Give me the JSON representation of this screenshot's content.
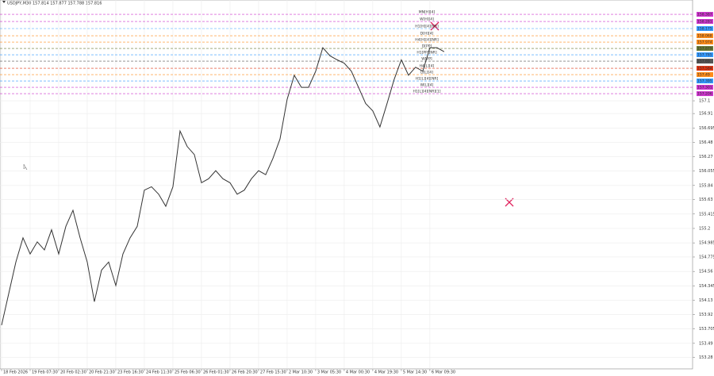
{
  "chart_data": {
    "type": "line",
    "title": "USDJPY,M30 157.814 157.877 157.788 157.816",
    "ylim": [
      153.11,
      158.6
    ],
    "yticks": [
      157.1,
      156.91,
      156.695,
      156.48,
      156.27,
      156.055,
      155.84,
      155.63,
      155.415,
      155.2,
      154.985,
      154.775,
      154.56,
      154.345,
      154.13,
      153.92,
      153.705,
      153.49,
      153.28
    ],
    "xlim": [
      0,
      96.8
    ],
    "xticks": [
      {
        "value": 0,
        "label": "18 Feb 2026"
      },
      {
        "value": 4,
        "label": "19 Feb 07:30"
      },
      {
        "value": 8,
        "label": "20 Feb 02:30"
      },
      {
        "value": 12,
        "label": "20 Feb 21:30"
      },
      {
        "value": 16,
        "label": "23 Feb 16:30"
      },
      {
        "value": 20,
        "label": "24 Feb 11:30"
      },
      {
        "value": 24,
        "label": "25 Feb 06:30"
      },
      {
        "value": 28,
        "label": "26 Feb 01:30"
      },
      {
        "value": 32,
        "label": "26 Feb 20:30"
      },
      {
        "value": 36,
        "label": "27 Feb 15:30"
      },
      {
        "value": 40,
        "label": "2 Mar 10:30"
      },
      {
        "value": 44,
        "label": "3 Mar 05:30"
      },
      {
        "value": 48,
        "label": "4 Mar 00:30"
      },
      {
        "value": 52,
        "label": "4 Mar 19:30"
      },
      {
        "value": 56,
        "label": "5 Mar 14:30"
      },
      {
        "value": 60,
        "label": "6 Mar 09:30"
      }
    ],
    "grid": true,
    "series": [
      {
        "name": "USDJPY,M30",
        "color": "#333333",
        "values": [
          153.76,
          154.23,
          154.7,
          155.06,
          154.82,
          155.0,
          154.88,
          155.18,
          154.82,
          155.23,
          155.47,
          155.06,
          154.7,
          154.11,
          154.58,
          154.7,
          154.35,
          154.82,
          155.06,
          155.23,
          155.77,
          155.82,
          155.71,
          155.53,
          155.82,
          156.65,
          156.42,
          156.3,
          155.88,
          155.94,
          156.06,
          155.94,
          155.88,
          155.71,
          155.77,
          155.94,
          156.06,
          156.0,
          156.24,
          156.53,
          157.12,
          157.48,
          157.3,
          157.3,
          157.54,
          157.89,
          157.77,
          157.71,
          157.66,
          157.54,
          157.3,
          157.06,
          156.95,
          156.71,
          157.06,
          157.42,
          157.71,
          157.48,
          157.6,
          157.54,
          157.89,
          157.89,
          157.83
        ]
      }
    ],
    "levels": [
      {
        "label": "MN[H][4]",
        "value": 158.387,
        "color": "#cc33cc"
      },
      {
        "label": "W[H][4]",
        "value": 158.281,
        "color": "#cc33cc"
      },
      {
        "label": "H1[H][4][NR]",
        "value": 158.175,
        "color": "#3399ff"
      },
      {
        "label": "D[H][4]",
        "value": 158.068,
        "color": "#ff8c1a"
      },
      {
        "label": "H4[H][4][NR]",
        "value": 157.974,
        "color": "#ff8c1a"
      },
      {
        "label": "D[PP]",
        "value": 157.879,
        "color": "#667733"
      },
      {
        "label": "H1[PP][NR]",
        "value": 157.785,
        "color": "#3399ff"
      },
      {
        "label": "W[PP]",
        "value": 157.69,
        "color": "#555555"
      },
      {
        "label": "H4[L][4]",
        "value": 157.584,
        "color": "#dd3311"
      },
      {
        "label": "D[L][4]",
        "value": 157.49,
        "color": "#ff8c1a"
      },
      {
        "label": "H1[L][4][NR]",
        "value": 157.395,
        "color": "#3399ff"
      },
      {
        "label": "W[L][4]",
        "value": 157.301,
        "color": "#cc33cc"
      },
      {
        "label": "H1[L][4][NR][1]",
        "value": 157.206,
        "color": "#cc33cc"
      }
    ]
  }
}
